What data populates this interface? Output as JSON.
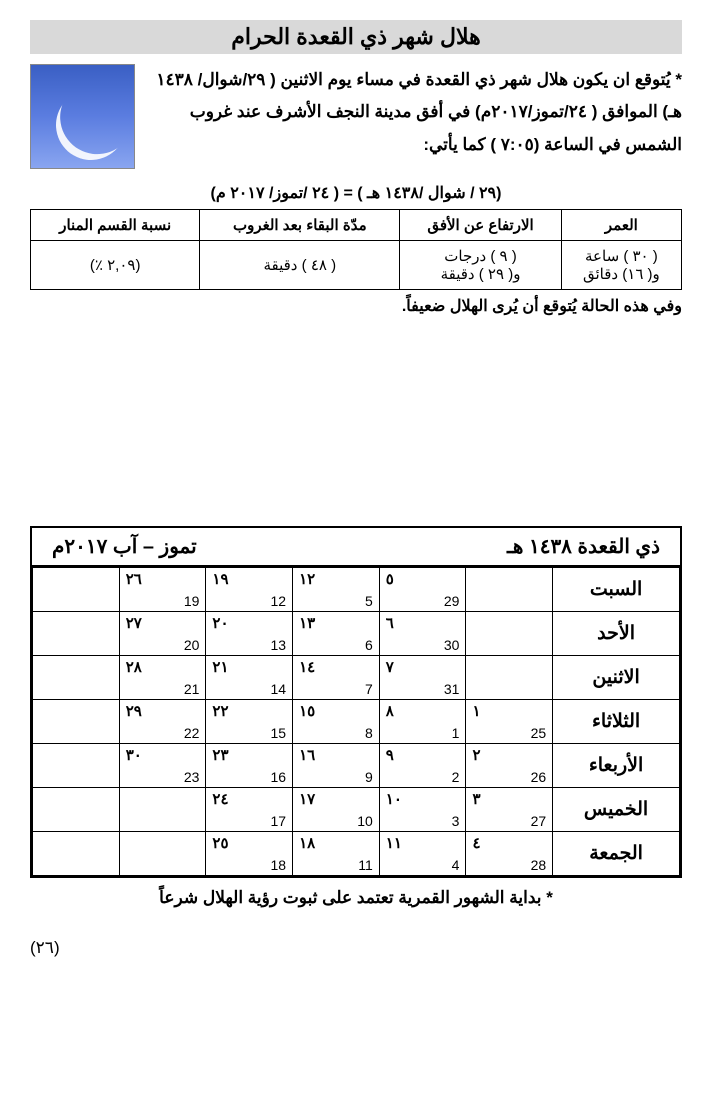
{
  "title": "هلال شهر ذي القعدة الحرام",
  "intro": "* يُتوقع ان يكون هلال شهر ذي القعدة في مساء يوم الاثنين ( ٢٩/شوال/ ١٤٣٨ هـ) الموافق ( ٢٤/تموز/٢٠١٧م) في أفق مدينة النجف الأشرف عند غروب الشمس في الساعة (٧:٠٥ )  كما يأتي:",
  "date_line": "(٢٩ / شوال /١٤٣٨ هـ ) = ( ٢٤ /تموز/ ٢٠١٧ م)",
  "info_table": {
    "headers": [
      "العمر",
      "الارتفاع عن الأفق",
      "مدّة البقاء بعد الغروب",
      "نسبة القسم المنار"
    ],
    "row": {
      "age": "( ٣٠ ) ساعة\nو( ١٦) دقائق",
      "altitude": "( ٩ ) درجات\nو( ٢٩ ) دقيقة",
      "duration": "( ٤٨ ) دقيقة",
      "illumination": "(٢,٠٩ ٪)"
    }
  },
  "note": "وفي هذه الحالة يُتوقع أن يُرى الهلال ضعيفاً.",
  "cal_header_right": "ذي القعدة ١٤٣٨ هـ",
  "cal_header_left": "تموز – آب ٢٠١٧م",
  "days": [
    "السبت",
    "الأحد",
    "الاثنين",
    "الثلاثاء",
    "الأربعاء",
    "الخميس",
    "الجمعة"
  ],
  "calendar": [
    [
      {
        "h": "",
        "g": ""
      },
      {
        "h": "٥",
        "g": "29"
      },
      {
        "h": "١٢",
        "g": "5"
      },
      {
        "h": "١٩",
        "g": "12"
      },
      {
        "h": "٢٦",
        "g": "19"
      },
      {
        "h": "",
        "g": ""
      }
    ],
    [
      {
        "h": "",
        "g": ""
      },
      {
        "h": "٦",
        "g": "30"
      },
      {
        "h": "١٣",
        "g": "6"
      },
      {
        "h": "٢٠",
        "g": "13"
      },
      {
        "h": "٢٧",
        "g": "20"
      },
      {
        "h": "",
        "g": ""
      }
    ],
    [
      {
        "h": "",
        "g": ""
      },
      {
        "h": "٧",
        "g": "31"
      },
      {
        "h": "١٤",
        "g": "7"
      },
      {
        "h": "٢١",
        "g": "14"
      },
      {
        "h": "٢٨",
        "g": "21"
      },
      {
        "h": "",
        "g": ""
      }
    ],
    [
      {
        "h": "١",
        "g": "25"
      },
      {
        "h": "٨",
        "g": "1"
      },
      {
        "h": "١٥",
        "g": "8"
      },
      {
        "h": "٢٢",
        "g": "15"
      },
      {
        "h": "٢٩",
        "g": "22"
      },
      {
        "h": "",
        "g": ""
      }
    ],
    [
      {
        "h": "٢",
        "g": "26"
      },
      {
        "h": "٩",
        "g": "2"
      },
      {
        "h": "١٦",
        "g": "9"
      },
      {
        "h": "٢٣",
        "g": "16"
      },
      {
        "h": "٣٠",
        "g": "23"
      },
      {
        "h": "",
        "g": ""
      }
    ],
    [
      {
        "h": "٣",
        "g": "27"
      },
      {
        "h": "١٠",
        "g": "3"
      },
      {
        "h": "١٧",
        "g": "10"
      },
      {
        "h": "٢٤",
        "g": "17"
      },
      {
        "h": "",
        "g": ""
      },
      {
        "h": "",
        "g": ""
      }
    ],
    [
      {
        "h": "٤",
        "g": "28"
      },
      {
        "h": "١١",
        "g": "4"
      },
      {
        "h": "١٨",
        "g": "11"
      },
      {
        "h": "٢٥",
        "g": "18"
      },
      {
        "h": "",
        "g": ""
      },
      {
        "h": "",
        "g": ""
      }
    ]
  ],
  "footnote": "*   بداية الشهور القمرية تعتمد على ثبوت رؤية الهلال شرعاً",
  "page_number": "(٢٦)"
}
